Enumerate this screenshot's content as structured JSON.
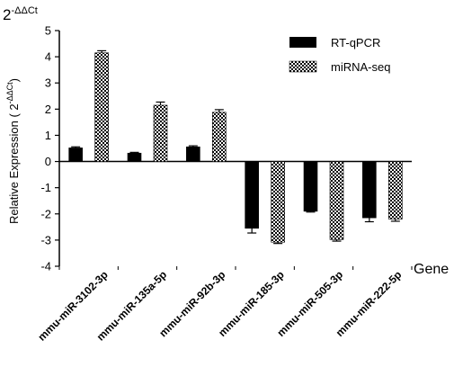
{
  "chart_data": {
    "type": "bar",
    "title": "2",
    "title_superscript": "-ΔΔCt",
    "xlabel": "Gene",
    "ylabel": "Relative Expression ( 2",
    "ylabel_superscript": "-ΔΔCt",
    "ylabel_close": ")",
    "ylim": [
      -4,
      5
    ],
    "yticks": [
      5,
      4,
      3,
      2,
      1,
      0,
      -1,
      -2,
      -3,
      -4
    ],
    "grid": false,
    "legend_position": "top-right",
    "categories": [
      "mmu-miR-3102-3p",
      "mmu-miR-135a-5p",
      "mmu-miR-92b-3p",
      "mmu-miR-185-3p",
      "mmu-miR-505-3p",
      "mmu-miR-222-5p"
    ],
    "series": [
      {
        "name": "RT-qPCR",
        "color": "#000000",
        "pattern": "solid",
        "values": [
          0.52,
          0.32,
          0.56,
          -2.55,
          -1.9,
          -2.15
        ],
        "errors": [
          0.04,
          0.03,
          0.04,
          0.18,
          0.03,
          0.15
        ]
      },
      {
        "name": "miRNA-seq",
        "color": "#000000",
        "pattern": "checker",
        "values": [
          4.15,
          2.15,
          1.88,
          -3.08,
          -2.98,
          -2.2
        ],
        "errors": [
          0.08,
          0.12,
          0.1,
          0.05,
          0.06,
          0.08
        ]
      }
    ]
  }
}
